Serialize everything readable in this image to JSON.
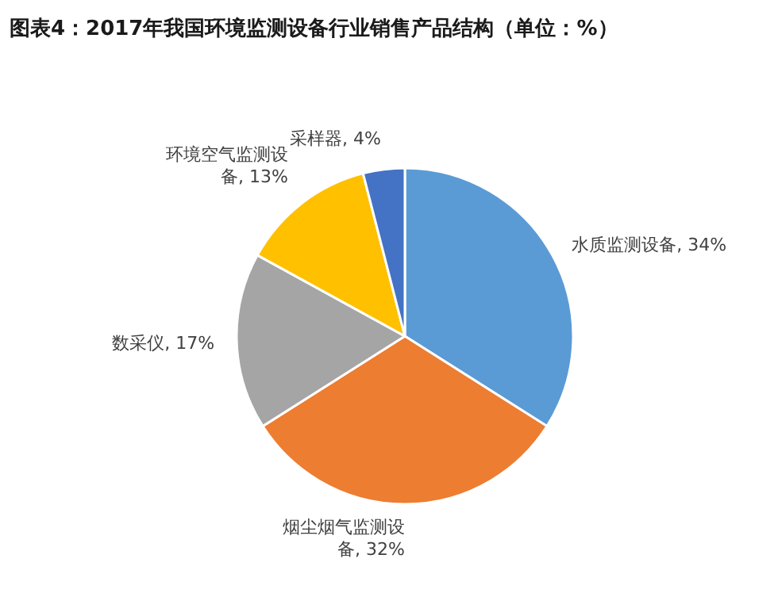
{
  "chart_data": {
    "type": "pie",
    "title": "图表4：2017年我国环境监测设备行业销售产品结构（单位：%）",
    "categories": [
      "水质监测设备",
      "烟尘烟气监测设备",
      "数采仪",
      "环境空气监测设备",
      "采样器"
    ],
    "values": [
      34,
      32,
      17,
      13,
      4
    ],
    "colors": [
      "#5b9bd5",
      "#ed7d31",
      "#a5a5a5",
      "#ffc000",
      "#4472c4"
    ],
    "value_labels": [
      "34%",
      "32%",
      "17%",
      "13%",
      "4%"
    ]
  }
}
